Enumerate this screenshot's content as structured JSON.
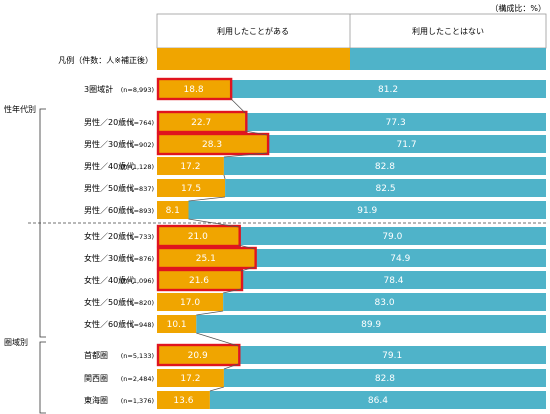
{
  "unit_note": "（構成比：%）",
  "legend_label": "凡例（件数：人※補正後）",
  "colors": {
    "used": "#f0a500",
    "not_used": "#4fb3c9",
    "highlight": "#e0141e",
    "text": "#1a1a1a"
  },
  "chart_data": {
    "type": "bar",
    "orientation": "horizontal",
    "stacked": true,
    "percent": true,
    "xlim": [
      0,
      100
    ],
    "series": [
      {
        "name": "利用したことがある",
        "values": [
          18.8,
          22.7,
          28.3,
          17.2,
          17.5,
          8.1,
          21.0,
          25.1,
          21.6,
          17.0,
          10.1,
          20.9,
          17.2,
          13.6
        ]
      },
      {
        "name": "利用したことはない",
        "values": [
          81.2,
          77.3,
          71.7,
          82.8,
          82.5,
          91.9,
          79.0,
          74.9,
          78.4,
          83.0,
          89.9,
          79.1,
          82.8,
          86.4
        ]
      }
    ],
    "rows": [
      {
        "label": "3圏域計",
        "n": "(n=8,993)",
        "highlight": true
      },
      {
        "label": "男性／20歳代",
        "n": "(n=764)",
        "highlight": true
      },
      {
        "label": "男性／30歳代",
        "n": "(n=902)",
        "highlight": true
      },
      {
        "label": "男性／40歳代",
        "n": "(n=1,128)",
        "highlight": false
      },
      {
        "label": "男性／50歳代",
        "n": "(n=837)",
        "highlight": false
      },
      {
        "label": "男性／60歳代",
        "n": "(n=893)",
        "highlight": false
      },
      {
        "label": "女性／20歳代",
        "n": "(n=733)",
        "highlight": true
      },
      {
        "label": "女性／30歳代",
        "n": "(n=876)",
        "highlight": true
      },
      {
        "label": "女性／40歳代",
        "n": "(n=1,096)",
        "highlight": true
      },
      {
        "label": "女性／50歳代",
        "n": "(n=820)",
        "highlight": false
      },
      {
        "label": "女性／60歳代",
        "n": "(n=948)",
        "highlight": false
      },
      {
        "label": "首都圏",
        "n": "(n=5,133)",
        "highlight": true
      },
      {
        "label": "関西圏",
        "n": "(n=2,484)",
        "highlight": false
      },
      {
        "label": "東海圏",
        "n": "(n=1,376)",
        "highlight": false
      }
    ],
    "groups": [
      {
        "label": "性年代別",
        "from": 1,
        "to": 10
      },
      {
        "label": "圏域別",
        "from": 11,
        "to": 13
      }
    ]
  }
}
